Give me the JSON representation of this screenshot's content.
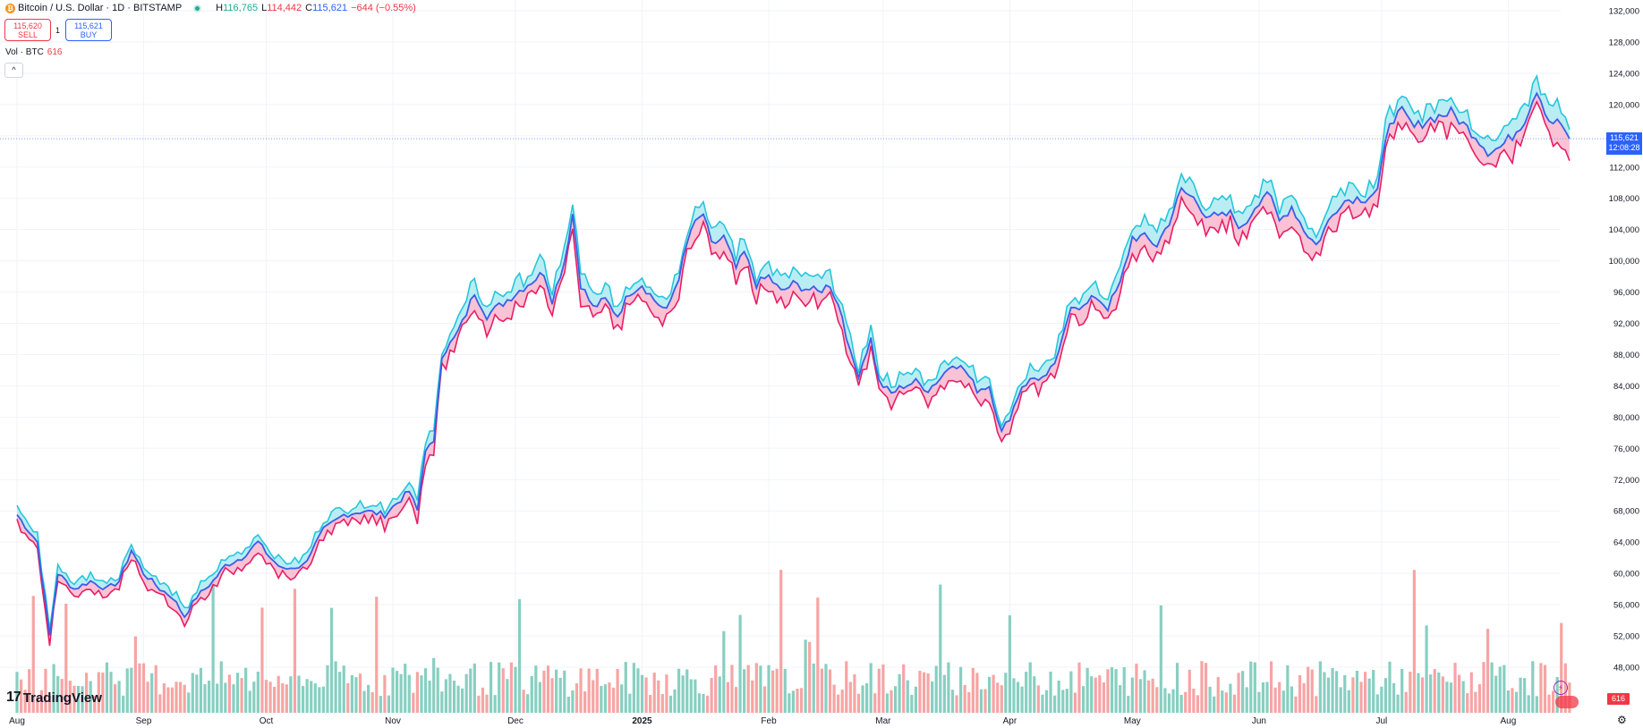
{
  "header": {
    "symbol_title": "Bitcoin / U.S. Dollar · 1D · BITSTAMP",
    "btc_badge": "₿",
    "ohlc": {
      "high_label": "H",
      "high": "116,765",
      "low_label": "L",
      "low": "114,442",
      "close_label": "C",
      "close": "115,621",
      "change": "−644 (−0.55%)"
    }
  },
  "trade": {
    "sell_price": "115,620",
    "sell_label": "SELL",
    "buy_price": "115,621",
    "buy_label": "BUY",
    "spread": "1"
  },
  "volume_legend": {
    "label": "Vol · BTC",
    "value": "616"
  },
  "collapse_glyph": "^",
  "logo": {
    "mark": "17",
    "text": "TradingView"
  },
  "price_tag": {
    "price": "115,621",
    "countdown": "12:08:28"
  },
  "vol_tag": "616",
  "colors": {
    "high_line": "#26c6da",
    "close_line": "#3a5ee6",
    "low_line": "#e91e63",
    "fill_upper": "#b2ebf2",
    "fill_lower": "#f8bbd0",
    "vol_up": "#87cfc1",
    "vol_down": "#f7a4a4",
    "price_line": "#7c9cf7"
  },
  "chart_data": {
    "type": "line",
    "title": "Bitcoin / U.S. Dollar · 1D · BITSTAMP",
    "xlabel": "",
    "ylabel": "",
    "ylim": [
      44000,
      133000
    ],
    "grid": true,
    "y_ticks": [
      48000,
      52000,
      56000,
      60000,
      64000,
      68000,
      72000,
      76000,
      80000,
      84000,
      88000,
      92000,
      96000,
      100000,
      104000,
      108000,
      112000,
      116000,
      120000,
      124000,
      128000,
      132000
    ],
    "y_tick_labels": [
      "48,000",
      "52,000",
      "56,000",
      "60,000",
      "64,000",
      "68,000",
      "72,000",
      "76,000",
      "80,000",
      "84,000",
      "88,000",
      "92,000",
      "96,000",
      "100,000",
      "104,000",
      "108,000",
      "112,000",
      "116,000",
      "120,000",
      "124,000",
      "128,000",
      "132,000"
    ],
    "x_labels": [
      "Aug",
      "Sep",
      "Oct",
      "Nov",
      "Dec",
      "2025",
      "Feb",
      "Mar",
      "Apr",
      "May",
      "Jun",
      "Jul",
      "Aug"
    ],
    "x_label_days": [
      0,
      31,
      61,
      92,
      122,
      153,
      184,
      212,
      243,
      273,
      304,
      334,
      365
    ],
    "total_days": 382,
    "last_price": 115621,
    "keypoints": [
      [
        0,
        67500
      ],
      [
        5,
        64000
      ],
      [
        8,
        52000
      ],
      [
        10,
        60000
      ],
      [
        14,
        58000
      ],
      [
        18,
        59000
      ],
      [
        22,
        58000
      ],
      [
        25,
        59000
      ],
      [
        28,
        63000
      ],
      [
        31,
        60000
      ],
      [
        35,
        58000
      ],
      [
        38,
        57000
      ],
      [
        41,
        54500
      ],
      [
        44,
        57000
      ],
      [
        48,
        59000
      ],
      [
        51,
        61000
      ],
      [
        55,
        62000
      ],
      [
        59,
        64000
      ],
      [
        62,
        62000
      ],
      [
        65,
        60500
      ],
      [
        70,
        61000
      ],
      [
        75,
        65500
      ],
      [
        80,
        67500
      ],
      [
        85,
        68000
      ],
      [
        90,
        67500
      ],
      [
        93,
        69000
      ],
      [
        96,
        70500
      ],
      [
        98,
        68000
      ],
      [
        100,
        76000
      ],
      [
        102,
        76500
      ],
      [
        104,
        88000
      ],
      [
        107,
        90000
      ],
      [
        109,
        92000
      ],
      [
        112,
        96000
      ],
      [
        115,
        93000
      ],
      [
        120,
        95000
      ],
      [
        125,
        97000
      ],
      [
        129,
        98500
      ],
      [
        131,
        95000
      ],
      [
        134,
        100000
      ],
      [
        136,
        106000
      ],
      [
        138,
        97000
      ],
      [
        141,
        94000
      ],
      [
        144,
        95000
      ],
      [
        147,
        93000
      ],
      [
        150,
        96000
      ],
      [
        153,
        97000
      ],
      [
        156,
        95000
      ],
      [
        159,
        93500
      ],
      [
        162,
        98000
      ],
      [
        165,
        104000
      ],
      [
        168,
        106000
      ],
      [
        170,
        102000
      ],
      [
        173,
        103000
      ],
      [
        176,
        99000
      ],
      [
        178,
        101000
      ],
      [
        181,
        97000
      ],
      [
        184,
        98000
      ],
      [
        187,
        96000
      ],
      [
        190,
        97000
      ],
      [
        193,
        96500
      ],
      [
        196,
        96000
      ],
      [
        199,
        97000
      ],
      [
        202,
        93000
      ],
      [
        204,
        88000
      ],
      [
        206,
        85500
      ],
      [
        209,
        90000
      ],
      [
        211,
        84500
      ],
      [
        214,
        83000
      ],
      [
        217,
        84000
      ],
      [
        220,
        84500
      ],
      [
        223,
        83500
      ],
      [
        226,
        85000
      ],
      [
        229,
        87000
      ],
      [
        232,
        86000
      ],
      [
        235,
        83500
      ],
      [
        238,
        84000
      ],
      [
        241,
        78000
      ],
      [
        243,
        80000
      ],
      [
        246,
        84000
      ],
      [
        249,
        85000
      ],
      [
        252,
        85000
      ],
      [
        255,
        88000
      ],
      [
        258,
        94500
      ],
      [
        261,
        94000
      ],
      [
        264,
        95500
      ],
      [
        267,
        94000
      ],
      [
        270,
        97000
      ],
      [
        273,
        103000
      ],
      [
        276,
        103000
      ],
      [
        279,
        102000
      ],
      [
        282,
        105000
      ],
      [
        285,
        109000
      ],
      [
        288,
        108000
      ],
      [
        291,
        106000
      ],
      [
        294,
        105500
      ],
      [
        297,
        106000
      ],
      [
        300,
        104000
      ],
      [
        303,
        107000
      ],
      [
        306,
        109000
      ],
      [
        309,
        105000
      ],
      [
        312,
        107000
      ],
      [
        315,
        104000
      ],
      [
        318,
        102000
      ],
      [
        321,
        105000
      ],
      [
        324,
        107500
      ],
      [
        327,
        108000
      ],
      [
        330,
        108000
      ],
      [
        333,
        109000
      ],
      [
        336,
        118000
      ],
      [
        339,
        119000
      ],
      [
        342,
        117000
      ],
      [
        345,
        118000
      ],
      [
        348,
        118500
      ],
      [
        351,
        119000
      ],
      [
        354,
        117500
      ],
      [
        357,
        116000
      ],
      [
        360,
        114000
      ],
      [
        363,
        114500
      ],
      [
        366,
        116000
      ],
      [
        369,
        118000
      ],
      [
        372,
        122000
      ],
      [
        375,
        118000
      ],
      [
        378,
        117500
      ],
      [
        380,
        115621
      ]
    ],
    "volume_seed": 7
  }
}
